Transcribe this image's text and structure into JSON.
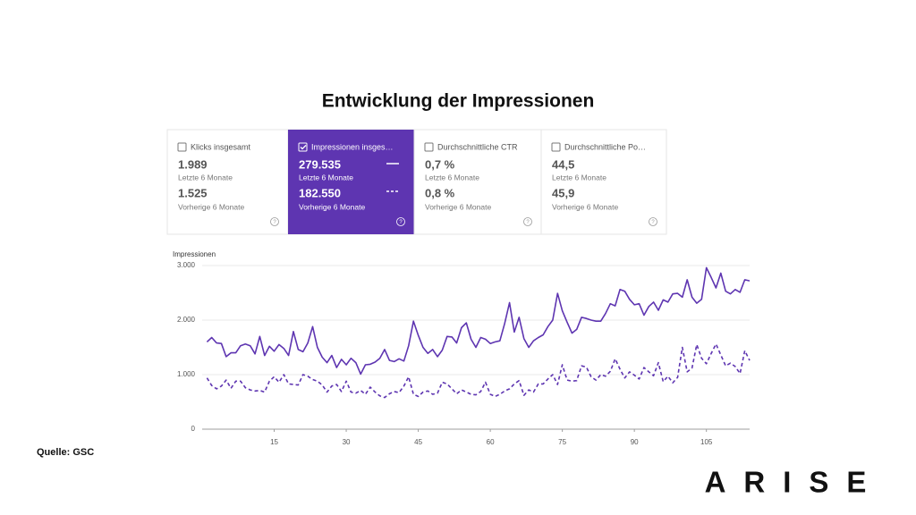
{
  "title": "Entwicklung der Impressionen",
  "cards": [
    {
      "label": "Klicks insgesamt",
      "checked": false,
      "current_value": "1.989",
      "current_label": "Letzte 6 Monate",
      "previous_value": "1.525",
      "previous_label": "Vorherige 6 Monate"
    },
    {
      "label": "Impressionen insges…",
      "checked": true,
      "current_value": "279.535",
      "current_label": "Letzte 6 Monate",
      "previous_value": "182.550",
      "previous_label": "Vorherige 6 Monate"
    },
    {
      "label": "Durchschnittliche CTR",
      "checked": false,
      "current_value": "0,7 %",
      "current_label": "Letzte 6 Monate",
      "previous_value": "0,8 %",
      "previous_label": "Vorherige 6 Monate"
    },
    {
      "label": "Durchschnittliche Po…",
      "checked": false,
      "current_value": "44,5",
      "current_label": "Letzte 6 Monate",
      "previous_value": "45,9",
      "previous_label": "Vorherige 6 Monate"
    }
  ],
  "active_color": "#5e35b1",
  "chart_data": {
    "type": "line",
    "y_label": "Impressionen",
    "x": [
      1,
      2,
      3,
      4,
      5,
      6,
      7,
      8,
      9,
      10,
      11,
      12,
      13,
      14,
      15,
      16,
      17,
      18,
      19,
      20,
      21,
      22,
      23,
      24,
      25,
      26,
      27,
      28,
      29,
      30,
      31,
      32,
      33,
      34,
      35,
      36,
      37,
      38,
      39,
      40,
      41,
      42,
      43,
      44,
      45,
      46,
      47,
      48,
      49,
      50,
      51,
      52,
      53,
      54,
      55,
      56,
      57,
      58,
      59,
      60,
      61,
      62,
      63,
      64,
      65,
      66,
      67,
      68,
      69,
      70,
      71,
      72,
      73,
      74,
      75,
      76,
      77,
      78,
      79,
      80,
      81,
      82,
      83,
      84,
      85,
      86,
      87,
      88,
      89,
      90,
      91,
      92,
      93,
      94,
      95,
      96,
      97,
      98,
      99,
      100,
      101,
      102,
      103,
      104,
      105,
      106,
      107,
      108,
      109,
      110,
      111,
      112,
      113,
      114
    ],
    "xlim": [
      0,
      114
    ],
    "xticks": [
      15,
      30,
      45,
      60,
      75,
      90,
      105
    ],
    "ylim": [
      0,
      3000
    ],
    "yticks": [
      0,
      {
        "value": 1000,
        "label": "1.000"
      },
      {
        "value": 2000,
        "label": "2.000"
      },
      {
        "value": 3000,
        "label": "3.000"
      }
    ],
    "grid": true,
    "series": [
      {
        "color": "#5e35b1",
        "dashed": false,
        "values": [
          1600,
          1680,
          1580,
          1570,
          1330,
          1400,
          1400,
          1530,
          1560,
          1530,
          1380,
          1700,
          1350,
          1520,
          1430,
          1550,
          1480,
          1350,
          1790,
          1460,
          1420,
          1580,
          1880,
          1500,
          1320,
          1220,
          1350,
          1130,
          1280,
          1180,
          1300,
          1220,
          1010,
          1180,
          1190,
          1230,
          1300,
          1460,
          1260,
          1240,
          1290,
          1250,
          1530,
          1980,
          1720,
          1500,
          1390,
          1460,
          1330,
          1450,
          1700,
          1690,
          1580,
          1860,
          1950,
          1650,
          1500,
          1680,
          1650,
          1570,
          1600,
          1620,
          1940,
          2320,
          1780,
          2050,
          1660,
          1500,
          1620,
          1680,
          1730,
          1880,
          2000,
          2490,
          2170,
          1960,
          1760,
          1830,
          2050,
          2030,
          2000,
          1980,
          1980,
          2120,
          2300,
          2260,
          2560,
          2530,
          2380,
          2280,
          2300,
          2090,
          2250,
          2330,
          2180,
          2370,
          2330,
          2480,
          2490,
          2420,
          2740,
          2420,
          2310,
          2380,
          2960,
          2780,
          2590,
          2860,
          2530,
          2480,
          2560,
          2510,
          2740,
          2720
        ]
      },
      {
        "color": "#5e35b1",
        "dashed": true,
        "values": [
          940,
          800,
          740,
          790,
          900,
          750,
          880,
          880,
          760,
          720,
          700,
          710,
          680,
          880,
          960,
          860,
          1000,
          830,
          820,
          810,
          1000,
          970,
          910,
          880,
          810,
          680,
          790,
          820,
          690,
          880,
          680,
          660,
          710,
          640,
          770,
          680,
          610,
          580,
          650,
          690,
          670,
          790,
          960,
          640,
          600,
          680,
          700,
          640,
          660,
          860,
          830,
          740,
          650,
          720,
          680,
          640,
          630,
          690,
          860,
          640,
          600,
          640,
          700,
          740,
          830,
          890,
          620,
          720,
          680,
          830,
          830,
          920,
          1000,
          820,
          1180,
          900,
          880,
          890,
          1160,
          1140,
          960,
          900,
          1000,
          970,
          1060,
          1290,
          1100,
          940,
          1050,
          990,
          920,
          1130,
          1050,
          980,
          1220,
          870,
          970,
          850,
          950,
          1500,
          1050,
          1120,
          1550,
          1300,
          1200,
          1390,
          1560,
          1360,
          1160,
          1210,
          1150,
          1020,
          1440,
          1260
        ]
      }
    ]
  },
  "source": "Quelle: GSC",
  "logo": "ARISE"
}
